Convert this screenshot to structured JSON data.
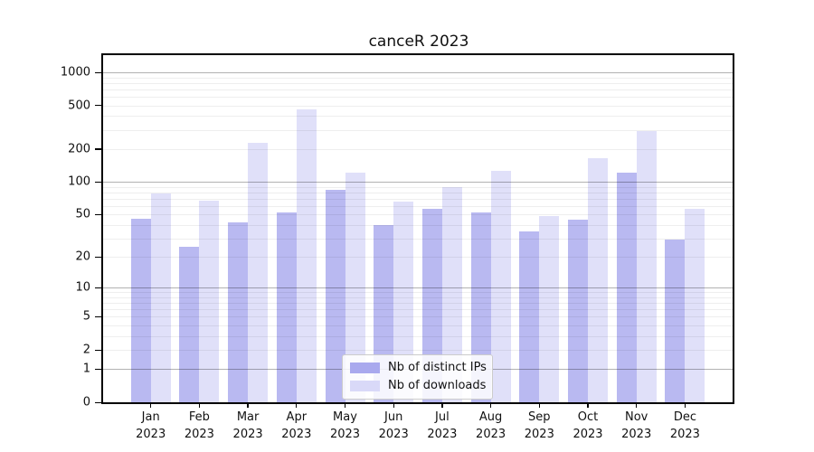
{
  "chart_data": {
    "type": "bar",
    "title": "canceR 2023",
    "categories": [
      "Jan 2023",
      "Feb 2023",
      "Mar 2023",
      "Apr 2023",
      "May 2023",
      "Jun 2023",
      "Jul 2023",
      "Aug 2023",
      "Sep 2023",
      "Oct 2023",
      "Nov 2023",
      "Dec 2023"
    ],
    "series": [
      {
        "name": "Nb of distinct IPs",
        "color": "#a9a9ee",
        "values": [
          46,
          25,
          42,
          52,
          85,
          40,
          56,
          52,
          35,
          45,
          122,
          29
        ]
      },
      {
        "name": "Nb of downloads",
        "color": "#d9d9f8",
        "values": [
          79,
          67,
          230,
          460,
          122,
          66,
          90,
          126,
          48,
          164,
          293,
          56
        ]
      }
    ],
    "yscale": "log1p",
    "ytick_values": [
      0,
      1,
      2,
      5,
      10,
      20,
      50,
      100,
      200,
      500,
      1000
    ],
    "ytick_labels": [
      "0",
      "1",
      "2",
      "5",
      "10",
      "20",
      "50",
      "100",
      "200",
      "500",
      "1000"
    ],
    "ylim": [
      0,
      1434
    ],
    "grid": "both",
    "major_grid_values": [
      1,
      10,
      100,
      1000
    ],
    "legend_position": "lower center",
    "xlabel": "",
    "ylabel": "",
    "colors": {
      "major_grid": "#b3b3b3",
      "minor_grid": "#ededed",
      "axis": "#000000",
      "background": "#ffffff"
    }
  }
}
